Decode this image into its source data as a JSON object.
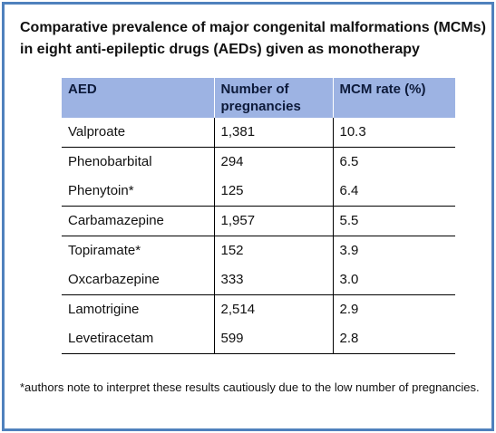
{
  "title": "Comparative prevalence of major congenital malformations (MCMs) in eight anti-epileptic drugs (AEDs) given as monotherapy",
  "table": {
    "headers": [
      "AED",
      "Number of pregnancies",
      "MCM rate (%)"
    ],
    "rows": [
      [
        "Valproate",
        "1,381",
        "10.3"
      ],
      [
        "Phenobarbital",
        "294",
        "6.5"
      ],
      [
        "Phenytoin*",
        "125",
        "6.4"
      ],
      [
        "Carbamazepine",
        "1,957",
        "5.5"
      ],
      [
        "Topiramate*",
        "152",
        "3.9"
      ],
      [
        "Oxcarbazepine",
        "333",
        "3.0"
      ],
      [
        "Lamotrigine",
        "2,514",
        "2.9"
      ],
      [
        "Levetiracetam",
        "599",
        "2.8"
      ]
    ]
  },
  "footnote": "*authors note to interpret these results cautiously due to the low number of pregnancies.",
  "colors": {
    "frame_border": "#4f81bd",
    "header_background": "#9db3e3"
  }
}
